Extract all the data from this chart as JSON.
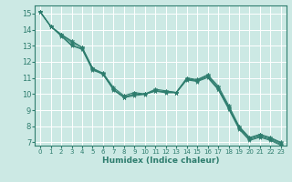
{
  "xlabel": "Humidex (Indice chaleur)",
  "bg_color": "#cce9e4",
  "grid_color": "#ffffff",
  "line_color": "#2e7d6e",
  "xlim": [
    -0.5,
    23.5
  ],
  "ylim": [
    6.8,
    15.5
  ],
  "xticks": [
    0,
    1,
    2,
    3,
    4,
    5,
    6,
    7,
    8,
    9,
    10,
    11,
    12,
    13,
    14,
    15,
    16,
    17,
    18,
    19,
    20,
    21,
    22,
    23
  ],
  "yticks": [
    7,
    8,
    9,
    10,
    11,
    12,
    13,
    14,
    15
  ],
  "series": [
    [
      15.1,
      14.2,
      13.7,
      13.3,
      12.9,
      11.6,
      11.3,
      10.4,
      9.9,
      10.1,
      10.0,
      10.3,
      10.2,
      10.1,
      11.0,
      10.9,
      11.2,
      10.5,
      9.3,
      8.0,
      7.3,
      7.5,
      7.3,
      7.0
    ],
    [
      15.1,
      14.2,
      13.7,
      13.2,
      12.9,
      11.6,
      11.2,
      10.3,
      9.8,
      10.0,
      10.0,
      10.2,
      10.15,
      10.1,
      10.95,
      10.85,
      11.15,
      10.4,
      9.2,
      7.95,
      7.25,
      7.45,
      7.25,
      6.95
    ],
    [
      15.1,
      14.2,
      13.65,
      13.05,
      12.82,
      11.52,
      11.28,
      10.28,
      9.82,
      10.0,
      10.0,
      10.22,
      10.12,
      10.1,
      10.92,
      10.82,
      11.08,
      10.32,
      9.12,
      7.88,
      7.18,
      7.38,
      7.18,
      6.88
    ],
    [
      15.1,
      14.2,
      13.6,
      13.0,
      12.78,
      11.48,
      11.25,
      10.25,
      9.78,
      9.9,
      9.98,
      10.18,
      10.08,
      10.08,
      10.88,
      10.78,
      11.02,
      10.28,
      9.08,
      7.82,
      7.12,
      7.32,
      7.12,
      6.82
    ]
  ]
}
